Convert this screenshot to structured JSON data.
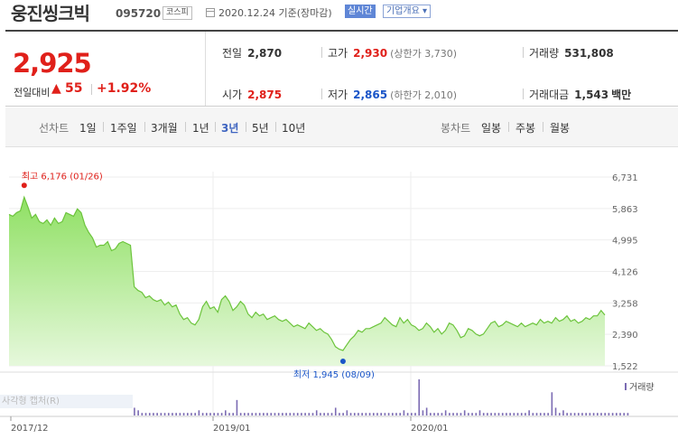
{
  "header": {
    "stock_name": "웅진씽크빅",
    "stock_code": "095720",
    "market": "코스피",
    "date": "2020.12.24 기준(장마감)",
    "live_label": "실시간",
    "overview_label": "기업개요 ▾"
  },
  "summary": {
    "price": "2,925",
    "change_label": "전일대비",
    "change_arrow": "▲",
    "change_value": "55",
    "change_pct": "+1.92%",
    "prev_close_label": "전일",
    "prev_close": "2,870",
    "open_label": "시가",
    "open": "2,875",
    "high_label": "고가",
    "high": "2,930",
    "upper_limit": "(상한가 3,730)",
    "low_label": "저가",
    "low": "2,865",
    "lower_limit": "(하한가 2,010)",
    "volume_label": "거래량",
    "volume": "531,808",
    "value_label": "거래대금",
    "value": "1,543",
    "value_unit": "백만"
  },
  "period": {
    "line_chart_label": "선차트",
    "line_options": [
      "1일",
      "1주일",
      "3개월",
      "1년",
      "3년",
      "5년",
      "10년"
    ],
    "active": "3년",
    "candle_chart_label": "봉차트",
    "candle_options": [
      "일봉",
      "주봉",
      "월봉"
    ]
  },
  "overlay_text": "사각형 캡처(R)",
  "colors": {
    "up": "#e0201a",
    "down": "#1a55c8",
    "area": "#9ee07a",
    "line": "#6cc43c",
    "volume": "#7b6bb3"
  },
  "chart_data": {
    "type": "area",
    "title": "",
    "y_ticks": [
      "6,731",
      "5,863",
      "4,995",
      "4,126",
      "3,258",
      "2,390",
      "1,522"
    ],
    "ylim": [
      1522,
      6731
    ],
    "x_ticks": [
      "2017/12",
      "2019/01",
      "2020/01"
    ],
    "high_annotation": "최고 6,176 (01/26)",
    "low_annotation": "최저 1,945 (08/09)",
    "volume_legend": "거래량",
    "series": [
      {
        "values": [
          5700,
          5650,
          5750,
          5800,
          6176,
          5900,
          5600,
          5700,
          5500,
          5450,
          5550,
          5400,
          5600,
          5450,
          5500,
          5750,
          5700,
          5650,
          5850,
          5750,
          5400,
          5200,
          5050,
          4800,
          4850,
          4850,
          4950,
          4700,
          4750,
          4900,
          4950,
          4900,
          4850,
          3700,
          3600,
          3550,
          3400,
          3450,
          3350,
          3300,
          3350,
          3200,
          3280,
          3150,
          3200,
          2950,
          2800,
          2850,
          2700,
          2650,
          2800,
          3150,
          3300,
          3100,
          3150,
          3000,
          3350,
          3450,
          3300,
          3050,
          3150,
          3300,
          3200,
          2950,
          2850,
          3000,
          2900,
          2950,
          2800,
          2850,
          2900,
          2800,
          2750,
          2800,
          2700,
          2600,
          2650,
          2600,
          2550,
          2700,
          2600,
          2500,
          2550,
          2450,
          2400,
          2250,
          2050,
          1980,
          1945,
          2100,
          2250,
          2350,
          2500,
          2450,
          2550,
          2550,
          2600,
          2650,
          2700,
          2850,
          2750,
          2650,
          2600,
          2850,
          2700,
          2800,
          2650,
          2600,
          2500,
          2550,
          2700,
          2600,
          2450,
          2550,
          2400,
          2500,
          2700,
          2650,
          2500,
          2300,
          2350,
          2550,
          2500,
          2400,
          2350,
          2400,
          2550,
          2700,
          2750,
          2600,
          2650,
          2750,
          2700,
          2650,
          2600,
          2700,
          2600,
          2650,
          2700,
          2650,
          2800,
          2700,
          2750,
          2700,
          2850,
          2750,
          2800,
          2900,
          2750,
          2800,
          2700,
          2750,
          2850,
          2800,
          2900,
          2900,
          3050,
          2925
        ]
      }
    ],
    "volume": [
      0,
      0,
      0,
      0,
      0,
      0,
      0,
      0,
      0,
      0,
      0,
      0,
      0,
      0,
      0,
      0,
      0,
      0,
      0,
      0,
      0,
      0,
      0,
      0,
      0,
      0,
      0,
      0,
      0,
      0,
      0,
      0,
      0,
      3,
      2,
      1,
      1,
      1,
      1,
      1,
      1,
      1,
      1,
      1,
      1,
      1,
      1,
      1,
      1,
      1,
      2,
      1,
      1,
      1,
      1,
      1,
      1,
      2,
      1,
      1,
      6,
      1,
      1,
      1,
      1,
      1,
      1,
      1,
      1,
      1,
      1,
      1,
      1,
      1,
      1,
      1,
      1,
      1,
      1,
      1,
      1,
      2,
      1,
      1,
      1,
      1,
      3,
      1,
      1,
      2,
      1,
      1,
      1,
      1,
      1,
      1,
      1,
      1,
      1,
      1,
      1,
      1,
      1,
      1,
      2,
      1,
      1,
      1,
      14,
      2,
      3,
      1,
      1,
      1,
      1,
      2,
      1,
      1,
      1,
      1,
      2,
      1,
      1,
      1,
      2,
      1,
      1,
      1,
      1,
      1,
      1,
      1,
      1,
      1,
      1,
      1,
      1,
      2,
      1,
      1,
      1,
      1,
      1,
      9,
      3,
      1,
      2,
      1,
      1,
      1,
      1,
      1,
      1,
      1,
      1,
      1,
      1,
      1,
      1,
      1,
      1,
      1,
      1,
      1
    ]
  }
}
